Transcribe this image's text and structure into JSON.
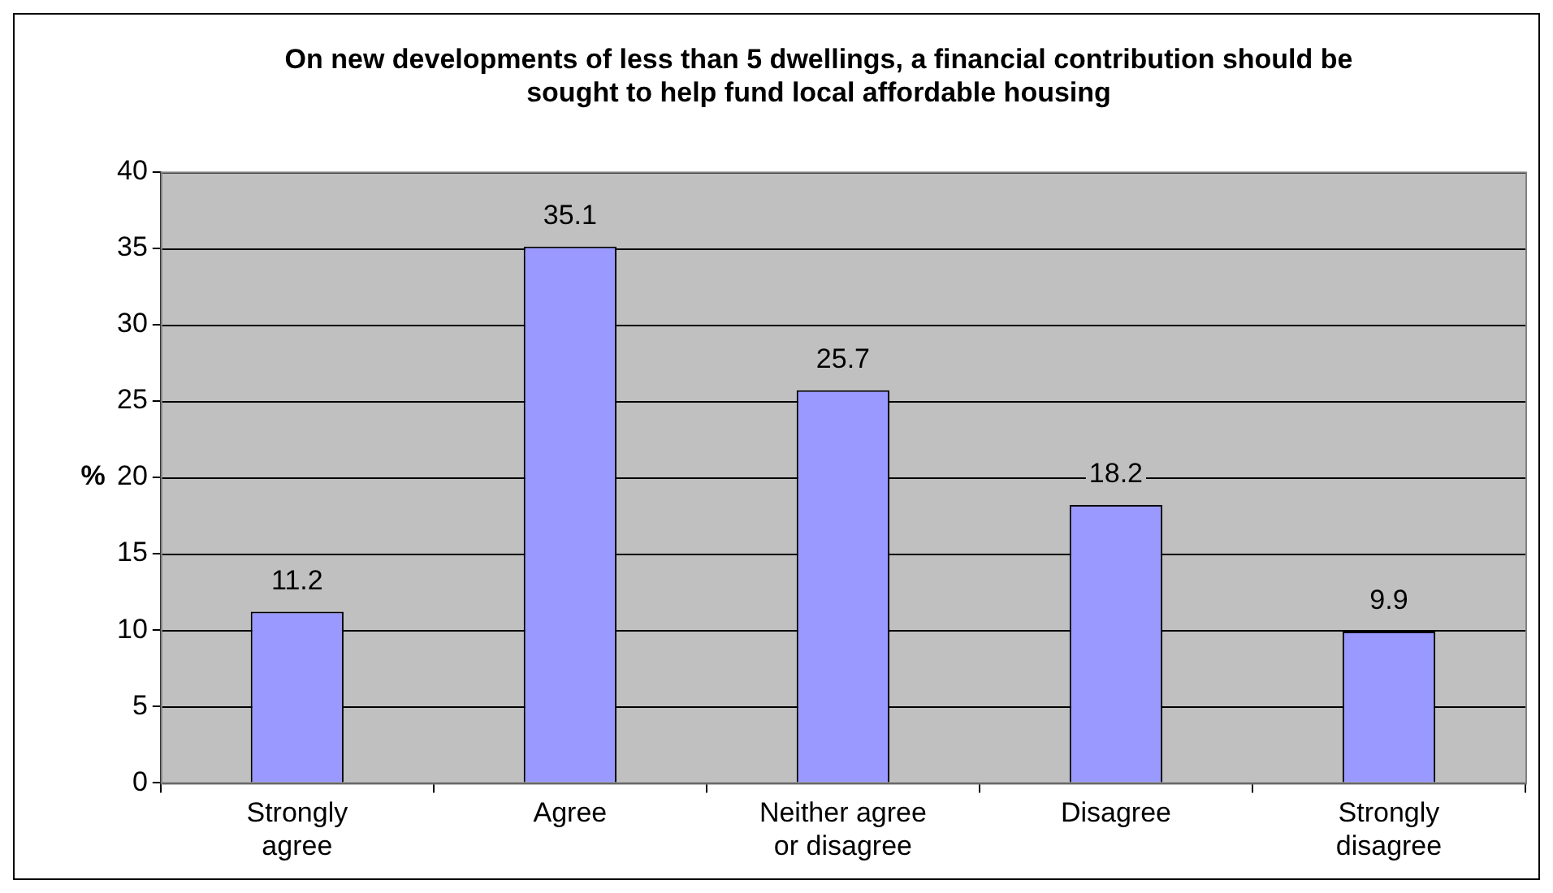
{
  "chart_data": {
    "type": "bar",
    "title": "On new developments of less than 5 dwellings, a financial contribution should be sought to help fund local affordable housing",
    "ylabel": "%",
    "categories": [
      "Strongly agree",
      "Agree",
      "Neither agree or disagree",
      "Disagree",
      "Strongly disagree"
    ],
    "values": [
      11.2,
      35.1,
      25.7,
      18.2,
      9.9
    ],
    "color": "#9999ff",
    "ylim": [
      0,
      40
    ],
    "yticks": [
      0,
      5,
      10,
      15,
      20,
      25,
      30,
      35,
      40
    ],
    "grid": "y",
    "data_labels": true,
    "legend": false
  }
}
